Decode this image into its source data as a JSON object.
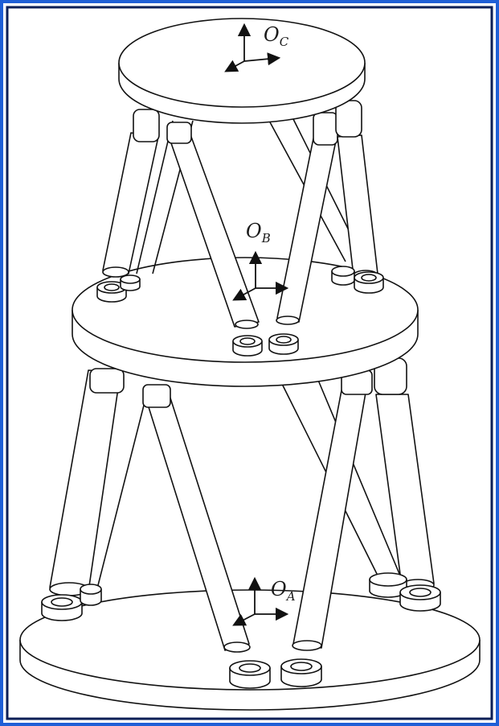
{
  "figure": {
    "frame_color_outer": "#1f5fd6",
    "frame_color_inner": "#0b1e56",
    "line_color": "#111111",
    "fill_color": "#ffffff",
    "labels": {
      "top": {
        "main": "O",
        "sub": "C"
      },
      "middle": {
        "main": "O",
        "sub": "B"
      },
      "base": {
        "main": "O",
        "sub": "A"
      }
    }
  }
}
